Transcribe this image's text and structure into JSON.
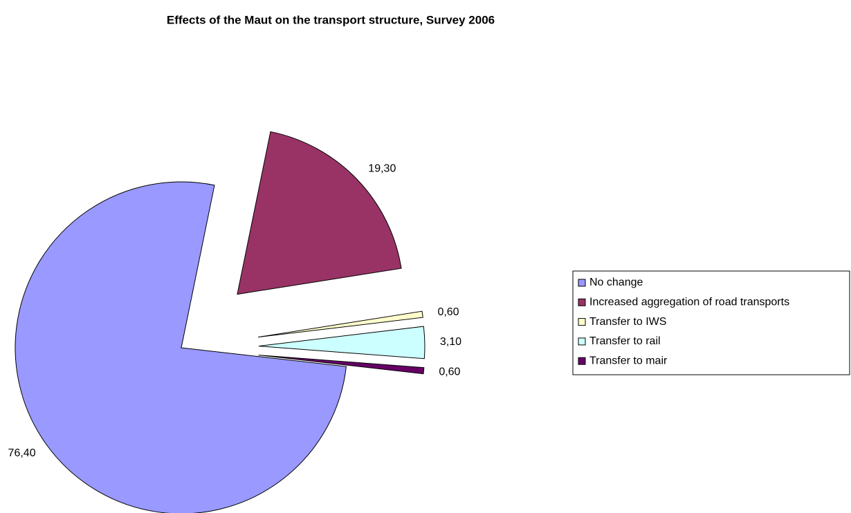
{
  "chart_data": {
    "type": "pie",
    "title": "Effects of the Maut on the transport structure, Survey 2006",
    "categories": [
      "No change",
      "Increased aggregation of road transports",
      "Transfer to IWS",
      "Transfer to rail",
      "Transfer to mair"
    ],
    "values": [
      76.4,
      19.3,
      0.6,
      3.1,
      0.6
    ],
    "value_labels": [
      "76,40",
      "19,30",
      "0,60",
      "3,10",
      "0,60"
    ],
    "colors": [
      "#9999ff",
      "#993366",
      "#ffffcc",
      "#ccffff",
      "#660066"
    ],
    "legend": "right"
  }
}
